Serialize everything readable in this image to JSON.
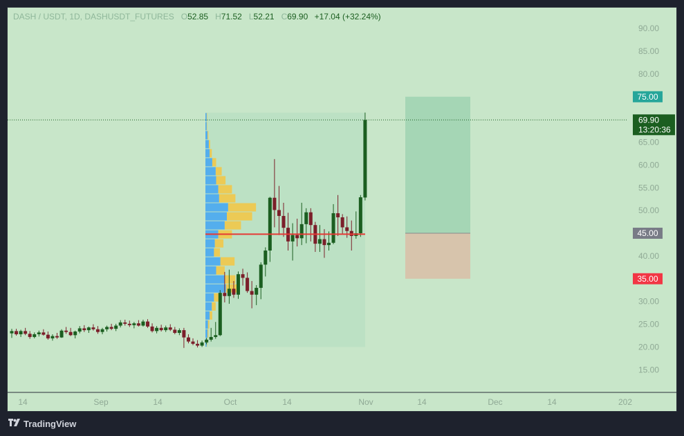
{
  "header": {
    "symbol": "DASH / USDT, 1D, DASHUSDT_FUTURES",
    "o_label": "O",
    "o": "52.85",
    "h_label": "H",
    "h": "71.52",
    "l_label": "L",
    "l": "52.21",
    "c_label": "C",
    "c": "69.90",
    "change": "+17.04 (+32.24%)"
  },
  "footer": {
    "brand": "TradingView",
    "logo_icon": "tradingview-logo-icon"
  },
  "colors": {
    "background": "#c8e6c9",
    "up": "#1b5e20",
    "down": "#7b1f2a",
    "poc": "#e53935",
    "profit_zone": "#a5d6b5",
    "loss_zone": "#d7c4ac",
    "vp_up": "#42a5f5",
    "vp_down": "#f5c542"
  },
  "chart_data": {
    "type": "candlestick",
    "title": "DASH / USDT, 1D, DASHUSDT_FUTURES",
    "ylim": [
      12,
      92
    ],
    "y_ticks": [
      "90.00",
      "85.00",
      "80.00",
      "75.00",
      "70.00",
      "65.00",
      "60.00",
      "55.00",
      "50.00",
      "45.00",
      "40.00",
      "35.00",
      "30.00",
      "25.00",
      "20.00",
      "15.00"
    ],
    "x_ticks": [
      "14",
      "Sep",
      "14",
      "Oct",
      "14",
      "Nov",
      "14",
      "Dec",
      "14",
      "202"
    ],
    "candles": [
      [
        23,
        24,
        22,
        23.5
      ],
      [
        23.5,
        24,
        22.5,
        22.8
      ],
      [
        22.8,
        23.8,
        22.2,
        23.5
      ],
      [
        23.5,
        24.2,
        22.6,
        22.9
      ],
      [
        22.9,
        23.5,
        21.8,
        22.2
      ],
      [
        22.2,
        23.2,
        21.9,
        22.8
      ],
      [
        22.8,
        23.6,
        22.3,
        23.2
      ],
      [
        23.2,
        23.9,
        22.5,
        22.7
      ],
      [
        22.7,
        23.4,
        21.6,
        21.9
      ],
      [
        21.9,
        22.8,
        21.4,
        22.4
      ],
      [
        22.4,
        23.1,
        21.8,
        22.1
      ],
      [
        22.1,
        23.9,
        22,
        23.6
      ],
      [
        23.6,
        24.4,
        22.9,
        23.3
      ],
      [
        23.3,
        24.2,
        22.4,
        22.6
      ],
      [
        22.6,
        23.6,
        21.9,
        23.4
      ],
      [
        23.4,
        24.6,
        23,
        24.1
      ],
      [
        24.1,
        24.8,
        23.3,
        23.7
      ],
      [
        23.7,
        24.5,
        23.1,
        24.3
      ],
      [
        24.3,
        25,
        23.6,
        23.9
      ],
      [
        23.9,
        24.6,
        22.9,
        23.3
      ],
      [
        23.3,
        24.2,
        22.8,
        23.9
      ],
      [
        23.9,
        24.7,
        23.4,
        24.4
      ],
      [
        24.4,
        25.1,
        23.7,
        24
      ],
      [
        24,
        25.1,
        23.5,
        24.7
      ],
      [
        24.7,
        25.9,
        24.3,
        25.4
      ],
      [
        25.4,
        26,
        24.7,
        25.1
      ],
      [
        25.1,
        25.8,
        24.4,
        24.8
      ],
      [
        24.8,
        25.5,
        24.1,
        25.2
      ],
      [
        25.2,
        25.9,
        24.5,
        24.7
      ],
      [
        24.7,
        26,
        24.5,
        25.6
      ],
      [
        25.6,
        26.1,
        24.2,
        24.5
      ],
      [
        24.5,
        25.2,
        23.2,
        23.5
      ],
      [
        23.5,
        24.6,
        23,
        24.2
      ],
      [
        24.2,
        24.9,
        23.4,
        23.7
      ],
      [
        23.7,
        24.7,
        23.3,
        24.3
      ],
      [
        24.3,
        25,
        23.5,
        23.8
      ],
      [
        23.8,
        24.4,
        22.8,
        23.1
      ],
      [
        23.1,
        24.1,
        22.6,
        23.7
      ],
      [
        23.7,
        24.2,
        19.8,
        22.1
      ],
      [
        22.1,
        22.8,
        20.8,
        21.2
      ],
      [
        21.2,
        21.9,
        20.4,
        20.7
      ],
      [
        20.7,
        21.5,
        19.9,
        20.3
      ],
      [
        20.3,
        21.4,
        20,
        21
      ],
      [
        21,
        22,
        20.6,
        21.6
      ],
      [
        21.6,
        24.2,
        21.2,
        22.2
      ],
      [
        22.2,
        25.5,
        21.8,
        22.6
      ],
      [
        22.6,
        32.5,
        22.4,
        31.9
      ],
      [
        31.9,
        36.5,
        29.8,
        31.2
      ],
      [
        31.2,
        37,
        29.5,
        32.8
      ],
      [
        32.8,
        34.5,
        30.8,
        31.5
      ],
      [
        31.5,
        36.6,
        30.6,
        36
      ],
      [
        36,
        37.2,
        33.5,
        35.2
      ],
      [
        35.2,
        36.4,
        31.9,
        32.3
      ],
      [
        32.3,
        34.5,
        28.5,
        31.5
      ],
      [
        31.5,
        33.6,
        29.2,
        33
      ],
      [
        33,
        38.6,
        30.5,
        38.1
      ],
      [
        38.1,
        41.9,
        35.5,
        41.2
      ],
      [
        41.2,
        53,
        38.7,
        52.8
      ],
      [
        52.8,
        61.3,
        46.3,
        50.1
      ],
      [
        50.1,
        55.4,
        44.6,
        48.8
      ],
      [
        48.8,
        51.7,
        44.2,
        46.2
      ],
      [
        46.2,
        49.5,
        41.2,
        43.2
      ],
      [
        43.2,
        47.2,
        39,
        44.6
      ],
      [
        44.6,
        48.2,
        42.1,
        43.9
      ],
      [
        43.9,
        51.7,
        42.4,
        47
      ],
      [
        47,
        50.5,
        42.8,
        49.6
      ],
      [
        49.6,
        50.5,
        43.2,
        46.8
      ],
      [
        46.8,
        47.5,
        40.9,
        42.7
      ],
      [
        42.7,
        46.8,
        40.9,
        43.7
      ],
      [
        43.7,
        45.9,
        39.6,
        42.4
      ],
      [
        42.4,
        45.4,
        41.2,
        42.9
      ],
      [
        42.9,
        51.4,
        42.6,
        49.4
      ],
      [
        49.4,
        53.4,
        44.4,
        48.5
      ],
      [
        48.5,
        49.2,
        44.9,
        46.3
      ],
      [
        46.3,
        48.7,
        44,
        45.5
      ],
      [
        45.5,
        47.8,
        41.2,
        44.4
      ],
      [
        44.4,
        49.8,
        43.8,
        45
      ],
      [
        45,
        53.4,
        44.2,
        52.9
      ],
      [
        52.85,
        71.52,
        52.21,
        69.9
      ]
    ],
    "last_close_candle_index": 78,
    "volume_profile": {
      "price_range": [
        20,
        71.5
      ],
      "rows": [
        [
          0.3,
          0.1
        ],
        [
          0.5,
          0.2
        ],
        [
          0.6,
          0.3
        ],
        [
          1.0,
          0.6
        ],
        [
          1.5,
          0.9
        ],
        [
          2.0,
          1.6
        ],
        [
          4.8,
          3.0
        ],
        [
          4.5,
          2.5
        ],
        [
          2.5,
          2.0
        ],
        [
          3.5,
          3.3
        ],
        [
          2.0,
          1.4
        ],
        [
          2.2,
          2.0
        ],
        [
          3.0,
          3.2
        ],
        [
          4.5,
          3.8
        ],
        [
          5.0,
          5.9
        ],
        [
          5.3,
          6.5
        ],
        [
          3.2,
          3.8
        ],
        [
          3.0,
          3.2
        ],
        [
          2.5,
          2.2
        ],
        [
          2.4,
          1.4
        ],
        [
          1.6,
          0.9
        ],
        [
          1.0,
          0.5
        ],
        [
          0.8,
          0.3
        ],
        [
          0.5,
          0.2
        ],
        [
          0.3,
          0.1
        ],
        [
          0.3,
          0.1
        ]
      ],
      "poc_price": 44.8
    },
    "poc_label": "",
    "position_tool": {
      "target": 75.0,
      "entry": 45.0,
      "stop": 35.0
    },
    "price_labels": {
      "target": "75.00",
      "entry": "45.00",
      "stop": "35.00",
      "current": "69.90",
      "countdown": "13:20:36"
    },
    "grid": false,
    "legend": "none"
  }
}
